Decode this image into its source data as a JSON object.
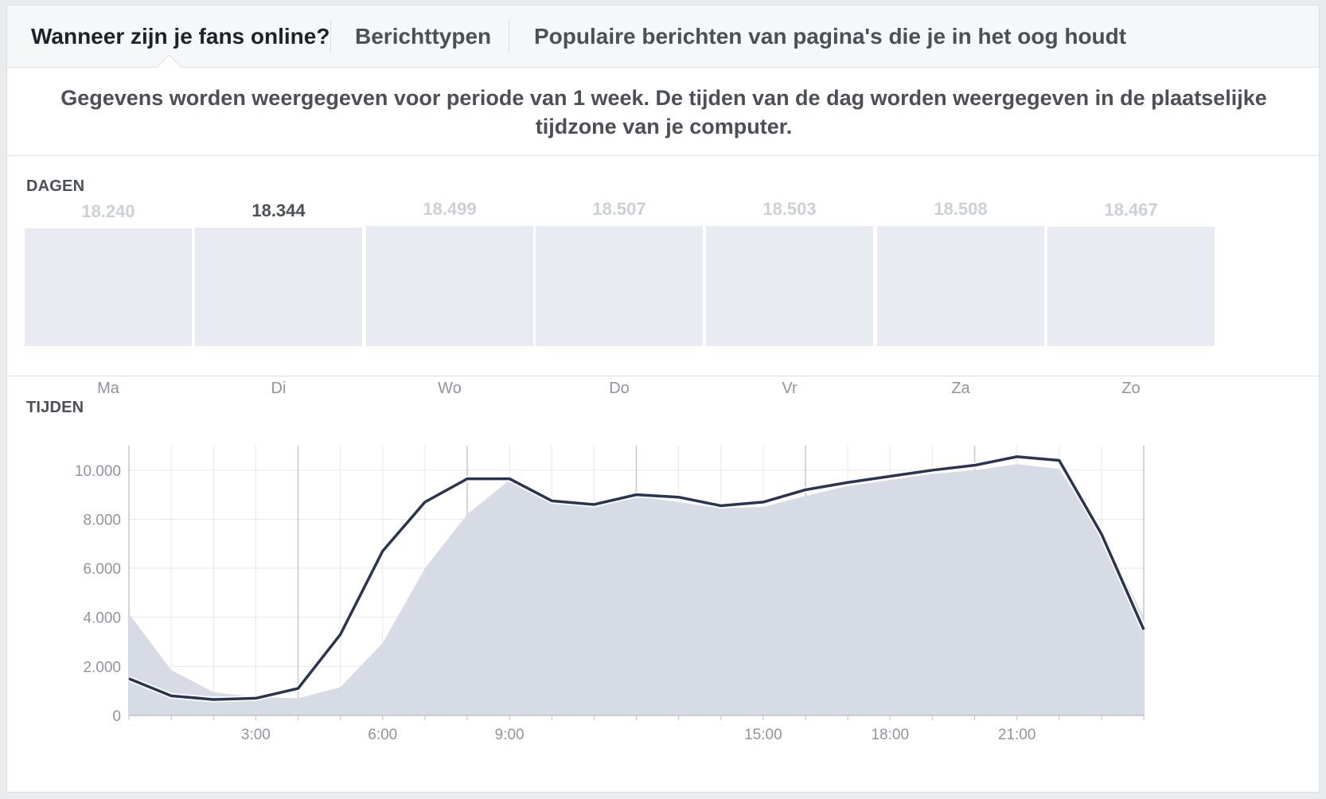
{
  "tabs": [
    {
      "label": "Wanneer zijn je fans online?",
      "active": true
    },
    {
      "label": "Berichttypen",
      "active": false
    },
    {
      "label": "Populaire berichten van pagina's die je in het oog houdt",
      "active": false
    }
  ],
  "notice": "Gegevens worden weergegeven voor periode van 1 week. De tijden van de dag worden weergegeven in de plaatselijke tijdzone van je computer.",
  "days_section": {
    "title": "DAGEN",
    "days": [
      {
        "label": "Ma",
        "count": "18.240",
        "value": 18240
      },
      {
        "label": "Di",
        "count": "18.344",
        "value": 18344,
        "selected": true
      },
      {
        "label": "Wo",
        "count": "18.499",
        "value": 18499
      },
      {
        "label": "Do",
        "count": "18.507",
        "value": 18507
      },
      {
        "label": "Vr",
        "count": "18.503",
        "value": 18503
      },
      {
        "label": "Za",
        "count": "18.508",
        "value": 18508
      },
      {
        "label": "Zo",
        "count": "18.467",
        "value": 18467
      }
    ]
  },
  "times_section": {
    "title": "TIJDEN"
  },
  "chart_data": {
    "type": "line",
    "x_hours": [
      0,
      1,
      2,
      3,
      4,
      5,
      6,
      7,
      8,
      9,
      10,
      11,
      12,
      13,
      14,
      15,
      16,
      17,
      18,
      19,
      20,
      21,
      22,
      23,
      24
    ],
    "x_tick_labels": [
      {
        "hour": 3,
        "label": "3:00"
      },
      {
        "hour": 6,
        "label": "6:00"
      },
      {
        "hour": 9,
        "label": "9:00"
      },
      {
        "hour": 15,
        "label": "15:00"
      },
      {
        "hour": 18,
        "label": "18:00"
      },
      {
        "hour": 21,
        "label": "21:00"
      }
    ],
    "y_ticks": [
      {
        "value": 0,
        "label": "0"
      },
      {
        "value": 2000,
        "label": "2.000"
      },
      {
        "value": 4000,
        "label": "4.000"
      },
      {
        "value": 6000,
        "label": "6.000"
      },
      {
        "value": 8000,
        "label": "8.000"
      },
      {
        "value": 10000,
        "label": "10.000"
      }
    ],
    "ylim": [
      0,
      11000
    ],
    "xlim": [
      0,
      24
    ],
    "grid": true,
    "series": [
      {
        "kind": "area",
        "color": "#d7dbe5",
        "values": [
          4150,
          1850,
          950,
          750,
          700,
          1150,
          2950,
          6000,
          8200,
          9600,
          8750,
          8700,
          8950,
          8700,
          8450,
          8500,
          8950,
          9350,
          9600,
          9850,
          10000,
          10250,
          10050,
          7450,
          4000
        ]
      },
      {
        "kind": "line",
        "color": "#283452",
        "values": [
          1500,
          800,
          650,
          700,
          1100,
          3300,
          6700,
          8700,
          9650,
          9650,
          8750,
          8600,
          9000,
          8900,
          8550,
          8700,
          9200,
          9500,
          9750,
          10000,
          10200,
          10550,
          10400,
          7400,
          3500
        ]
      }
    ]
  }
}
